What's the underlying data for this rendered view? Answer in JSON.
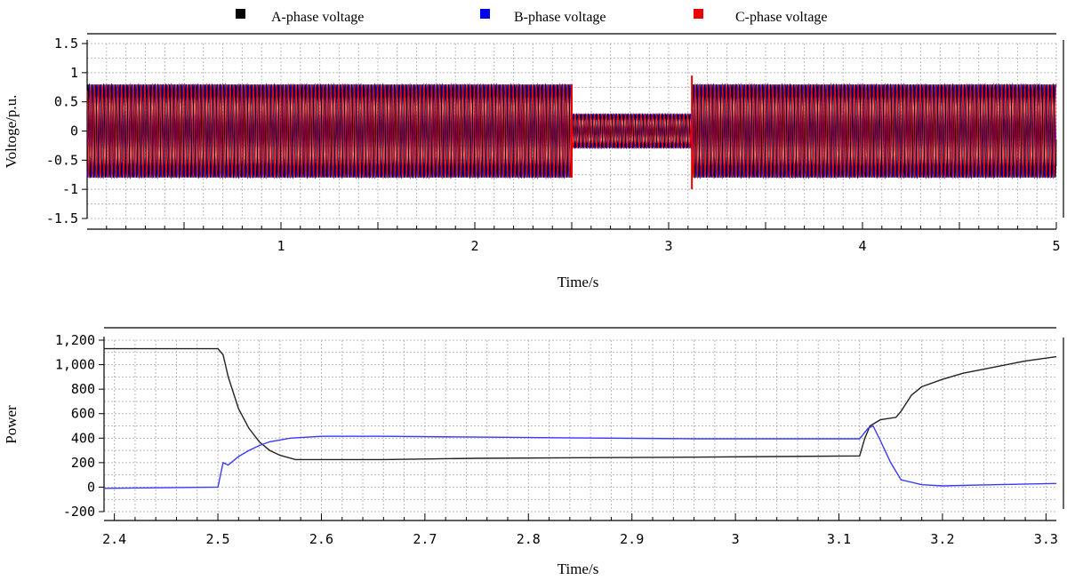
{
  "legend": [
    {
      "label": "A-phase voltage",
      "color": "#000000"
    },
    {
      "label": "B-phase voltage",
      "color": "#0000ee"
    },
    {
      "label": "C-phase voltage",
      "color": "#ee0000"
    }
  ],
  "chart_data": [
    {
      "type": "line",
      "title": "",
      "xlabel": "Time/s",
      "ylabel": "Voltoge/p.u.",
      "xlim": [
        0,
        5
      ],
      "ylim": [
        -1.5,
        1.5
      ],
      "x_ticks": [
        "1",
        "2",
        "3",
        "4",
        "5"
      ],
      "y_ticks": [
        "1.5",
        "1",
        "0.5",
        "0",
        "-0.5",
        "-1",
        "-1.5"
      ],
      "grid": true,
      "legend_position": "top",
      "series": [
        {
          "name": "A-phase voltage",
          "color": "#000000",
          "amplitude_segments": [
            [
              0,
              2.5,
              0.8
            ],
            [
              2.5,
              3.12,
              0.29
            ],
            [
              3.12,
              5,
              0.8
            ]
          ]
        },
        {
          "name": "B-phase voltage",
          "color": "#0000ee",
          "amplitude_segments": [
            [
              0,
              2.5,
              0.8
            ],
            [
              2.5,
              3.12,
              0.29
            ],
            [
              3.12,
              5,
              0.8
            ]
          ]
        },
        {
          "name": "C-phase voltage",
          "color": "#ee0000",
          "amplitude_segments": [
            [
              0,
              2.5,
              0.8
            ],
            [
              2.5,
              3.12,
              0.29
            ],
            [
              3.12,
              5,
              0.8
            ]
          ]
        }
      ],
      "transients": [
        [
          2.5,
          -0.8,
          0.8
        ],
        [
          3.12,
          -1.0,
          0.95
        ]
      ]
    },
    {
      "type": "line",
      "title": "",
      "xlabel": "Time/s",
      "ylabel": "Power",
      "xlim": [
        2.39,
        3.31
      ],
      "ylim": [
        -200,
        1200
      ],
      "x_ticks": [
        "2.4",
        "2.5",
        "2.6",
        "2.7",
        "2.8",
        "2.9",
        "3",
        "3.1",
        "3.2",
        "3.3"
      ],
      "y_ticks": [
        "1,200",
        "1,000",
        "800",
        "600",
        "400",
        "200",
        "0",
        "-200"
      ],
      "grid": true,
      "series": [
        {
          "color": "#222222",
          "x": [
            2.39,
            2.5,
            2.505,
            2.51,
            2.52,
            2.53,
            2.54,
            2.55,
            2.56,
            2.575,
            2.66,
            2.75,
            2.96,
            3.12,
            3.125,
            3.13,
            3.14,
            3.155,
            3.16,
            3.17,
            3.18,
            3.2,
            3.22,
            3.25,
            3.28,
            3.31
          ],
          "y": [
            1130,
            1130,
            1080,
            900,
            640,
            480,
            370,
            300,
            260,
            225,
            225,
            235,
            245,
            255,
            400,
            500,
            550,
            570,
            620,
            750,
            820,
            880,
            930,
            980,
            1030,
            1065
          ]
        },
        {
          "color": "#3a3aff",
          "x": [
            2.39,
            2.45,
            2.5,
            2.505,
            2.51,
            2.52,
            2.53,
            2.54,
            2.55,
            2.57,
            2.6,
            2.66,
            2.8,
            2.96,
            3.12,
            3.128,
            3.133,
            3.14,
            3.15,
            3.16,
            3.18,
            3.2,
            3.25,
            3.31
          ],
          "y": [
            -10,
            -5,
            0,
            200,
            180,
            250,
            300,
            340,
            370,
            400,
            415,
            415,
            405,
            395,
            395,
            480,
            500,
            380,
            200,
            60,
            20,
            10,
            20,
            30
          ]
        }
      ]
    }
  ]
}
